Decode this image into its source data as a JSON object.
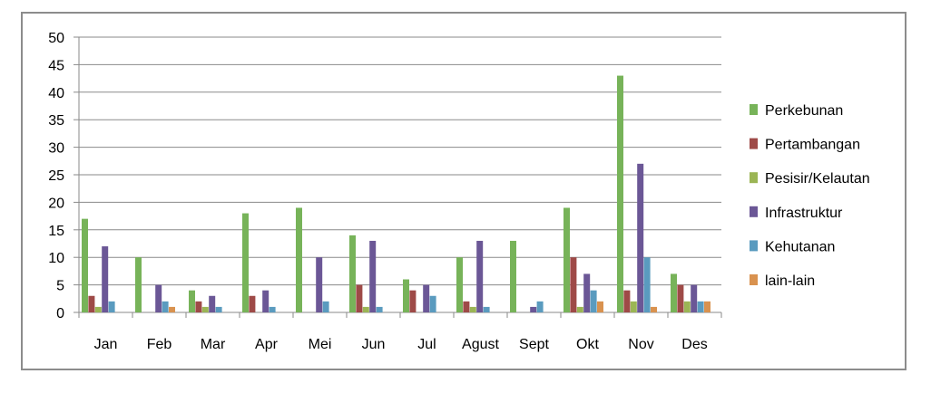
{
  "chart_data": {
    "type": "bar",
    "title": "",
    "xlabel": "",
    "ylabel": "",
    "ylim": [
      0,
      50
    ],
    "yticks": [
      0,
      5,
      10,
      15,
      20,
      25,
      30,
      35,
      40,
      45,
      50
    ],
    "grid": "horizontal",
    "legend_position": "right",
    "categories": [
      "Jan",
      "Feb",
      "Mar",
      "Apr",
      "Mei",
      "Jun",
      "Jul",
      "Agust",
      "Sept",
      "Okt",
      "Nov",
      "Des"
    ],
    "series": [
      {
        "name": "Perkebunan",
        "color": "#77b359",
        "values": [
          17,
          10,
          4,
          18,
          19,
          14,
          6,
          10,
          13,
          19,
          43,
          7
        ]
      },
      {
        "name": "Pertambangan",
        "color": "#9e4a47",
        "values": [
          3,
          0,
          2,
          3,
          0,
          5,
          4,
          2,
          0,
          10,
          4,
          5
        ]
      },
      {
        "name": "Pesisir/Kelautan",
        "color": "#9bb555",
        "values": [
          1,
          0,
          1,
          0,
          0,
          1,
          0,
          1,
          0,
          1,
          2,
          2
        ]
      },
      {
        "name": "Infrastruktur",
        "color": "#6b5796",
        "values": [
          12,
          5,
          3,
          4,
          10,
          13,
          5,
          13,
          1,
          7,
          27,
          5
        ]
      },
      {
        "name": "Kehutanan",
        "color": "#5a9bbf",
        "values": [
          2,
          2,
          1,
          1,
          2,
          1,
          3,
          1,
          2,
          4,
          10,
          2
        ]
      },
      {
        "name": "lain-lain",
        "color": "#d9924f",
        "values": [
          0,
          1,
          0,
          0,
          0,
          0,
          0,
          0,
          0,
          2,
          1,
          2
        ]
      }
    ]
  }
}
